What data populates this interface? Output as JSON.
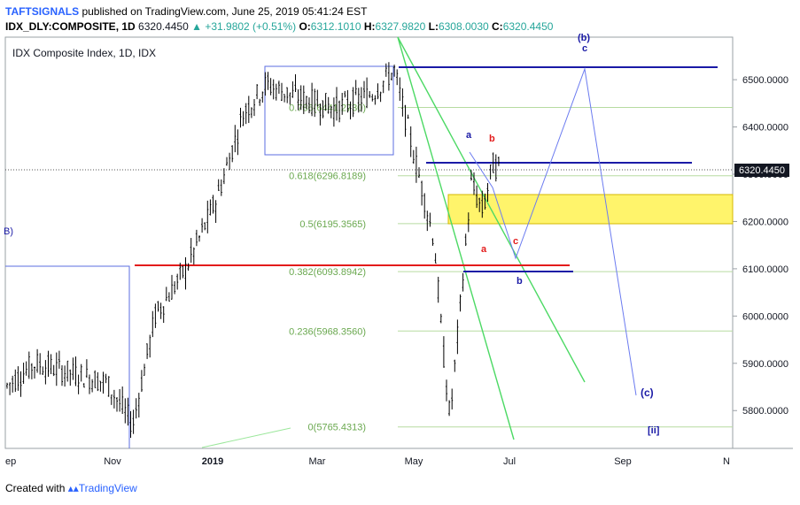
{
  "header": {
    "publisher": "TAFTSIGNALS",
    "published_text": " published on TradingView.com, June 25, 2019 05:41:24 EST",
    "symbol": "IDX_DLY:COMPOSITE, 1D",
    "last": "6320.4450",
    "change": "▲ +31.9802 (+0.51%)",
    "o_label": "O:",
    "o": "6312.1010",
    "h_label": "H:",
    "h": "6327.9820",
    "l_label": "L:",
    "l": "6308.0030",
    "c_label": "C:",
    "c": "6320.4450"
  },
  "footer": {
    "created": "Created with",
    "brand": "TradingView"
  },
  "chart_data": {
    "type": "candlestick",
    "title": "IDX Composite Index, 1D, IDX",
    "x_tick_labels": [
      "ep",
      "Nov",
      "2019",
      "Mar",
      "May",
      "Jul",
      "Sep",
      "N"
    ],
    "y_tick_labels": [
      "6500.0000",
      "6400.0000",
      "6300.0000",
      "6200.0000",
      "6100.0000",
      "6000.0000",
      "5900.0000",
      "5800.0000"
    ],
    "ylim": [
      5720,
      6590
    ],
    "last_price_label": "6320.4450",
    "fib_levels": [
      {
        "label": "0(5765.4313)",
        "value": 5765.4313
      },
      {
        "label": "0.236(5968.3560)",
        "value": 5968.356
      },
      {
        "label": "0.382(6093.8942)",
        "value": 6093.8942
      },
      {
        "label": "0.5(6195.3565)",
        "value": 6195.3565
      },
      {
        "label": "0.618(6296.8189)",
        "value": 6296.8189
      },
      {
        "label": "0.786(6441.2730)",
        "value": 6441.273
      }
    ],
    "wave_labels": [
      "a",
      "b",
      "c",
      "a",
      "b",
      "c",
      "(c)",
      "[ii]",
      "(b)",
      "B)"
    ],
    "colors": {
      "candle": "#000000",
      "fib": "#6aa84f",
      "red": "#e31b1b",
      "blue": "#1a1aa6",
      "green": "#4cd964",
      "yellow": "#fff46b",
      "wave_blue": "#6b7bf0"
    }
  }
}
